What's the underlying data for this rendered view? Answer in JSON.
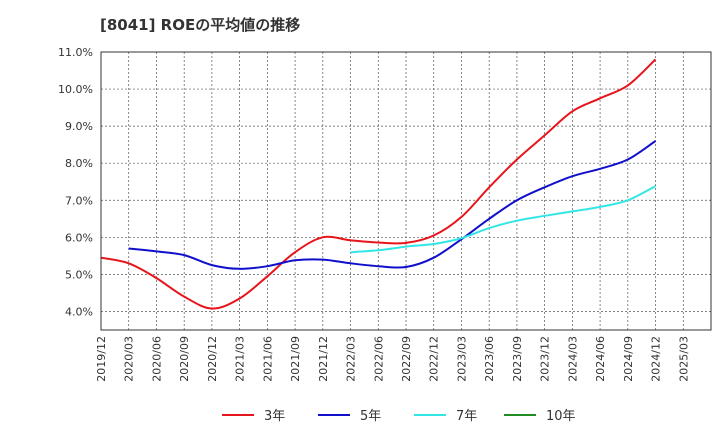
{
  "chart_data": {
    "type": "line",
    "title": "[8041]  ROEの平均値の推移",
    "xlabel": "",
    "ylabel": "",
    "ylim": [
      3.5,
      11.0
    ],
    "yticks": [
      4.0,
      5.0,
      6.0,
      7.0,
      8.0,
      9.0,
      10.0,
      11.0
    ],
    "ytick_labels": [
      "4.0%",
      "5.0%",
      "6.0%",
      "7.0%",
      "8.0%",
      "9.0%",
      "10.0%",
      "11.0%"
    ],
    "x_categories": [
      "2019/12",
      "2020/03",
      "2020/06",
      "2020/09",
      "2020/12",
      "2021/03",
      "2021/06",
      "2021/09",
      "2021/12",
      "2022/03",
      "2022/06",
      "2022/09",
      "2022/12",
      "2023/03",
      "2023/06",
      "2023/09",
      "2023/12",
      "2024/03",
      "2024/06",
      "2024/09",
      "2024/12",
      "2025/03"
    ],
    "grid": true,
    "legend_position": "bottom",
    "series": [
      {
        "name": "3年",
        "color": "#e8141b",
        "points": [
          [
            "2019/12",
            5.45
          ],
          [
            "2020/03",
            5.3
          ],
          [
            "2020/06",
            4.9
          ],
          [
            "2020/09",
            4.4
          ],
          [
            "2020/12",
            4.08
          ],
          [
            "2021/03",
            4.35
          ],
          [
            "2021/06",
            4.95
          ],
          [
            "2021/09",
            5.6
          ],
          [
            "2021/12",
            6.0
          ],
          [
            "2022/03",
            5.92
          ],
          [
            "2022/06",
            5.86
          ],
          [
            "2022/09",
            5.85
          ],
          [
            "2022/12",
            6.05
          ],
          [
            "2023/03",
            6.55
          ],
          [
            "2023/06",
            7.35
          ],
          [
            "2023/09",
            8.1
          ],
          [
            "2023/12",
            8.75
          ],
          [
            "2024/03",
            9.4
          ],
          [
            "2024/06",
            9.75
          ],
          [
            "2024/09",
            10.1
          ],
          [
            "2024/12",
            10.8
          ]
        ]
      },
      {
        "name": "5年",
        "color": "#1010cc",
        "points": [
          [
            "2020/03",
            5.7
          ],
          [
            "2020/06",
            5.62
          ],
          [
            "2020/09",
            5.52
          ],
          [
            "2020/12",
            5.25
          ],
          [
            "2021/03",
            5.15
          ],
          [
            "2021/06",
            5.22
          ],
          [
            "2021/09",
            5.38
          ],
          [
            "2021/12",
            5.4
          ],
          [
            "2022/03",
            5.3
          ],
          [
            "2022/06",
            5.22
          ],
          [
            "2022/09",
            5.2
          ],
          [
            "2022/12",
            5.45
          ],
          [
            "2023/03",
            5.95
          ],
          [
            "2023/06",
            6.5
          ],
          [
            "2023/09",
            7.0
          ],
          [
            "2023/12",
            7.35
          ],
          [
            "2024/03",
            7.65
          ],
          [
            "2024/06",
            7.85
          ],
          [
            "2024/09",
            8.1
          ],
          [
            "2024/12",
            8.6
          ]
        ]
      },
      {
        "name": "7年",
        "color": "#33e6e6",
        "points": [
          [
            "2022/03",
            5.6
          ],
          [
            "2022/06",
            5.65
          ],
          [
            "2022/09",
            5.75
          ],
          [
            "2022/12",
            5.82
          ],
          [
            "2023/03",
            5.98
          ],
          [
            "2023/06",
            6.25
          ],
          [
            "2023/09",
            6.45
          ],
          [
            "2023/12",
            6.58
          ],
          [
            "2024/03",
            6.7
          ],
          [
            "2024/06",
            6.82
          ],
          [
            "2024/09",
            7.0
          ],
          [
            "2024/12",
            7.38
          ]
        ]
      },
      {
        "name": "10年",
        "color": "#228b22",
        "points": []
      }
    ]
  }
}
